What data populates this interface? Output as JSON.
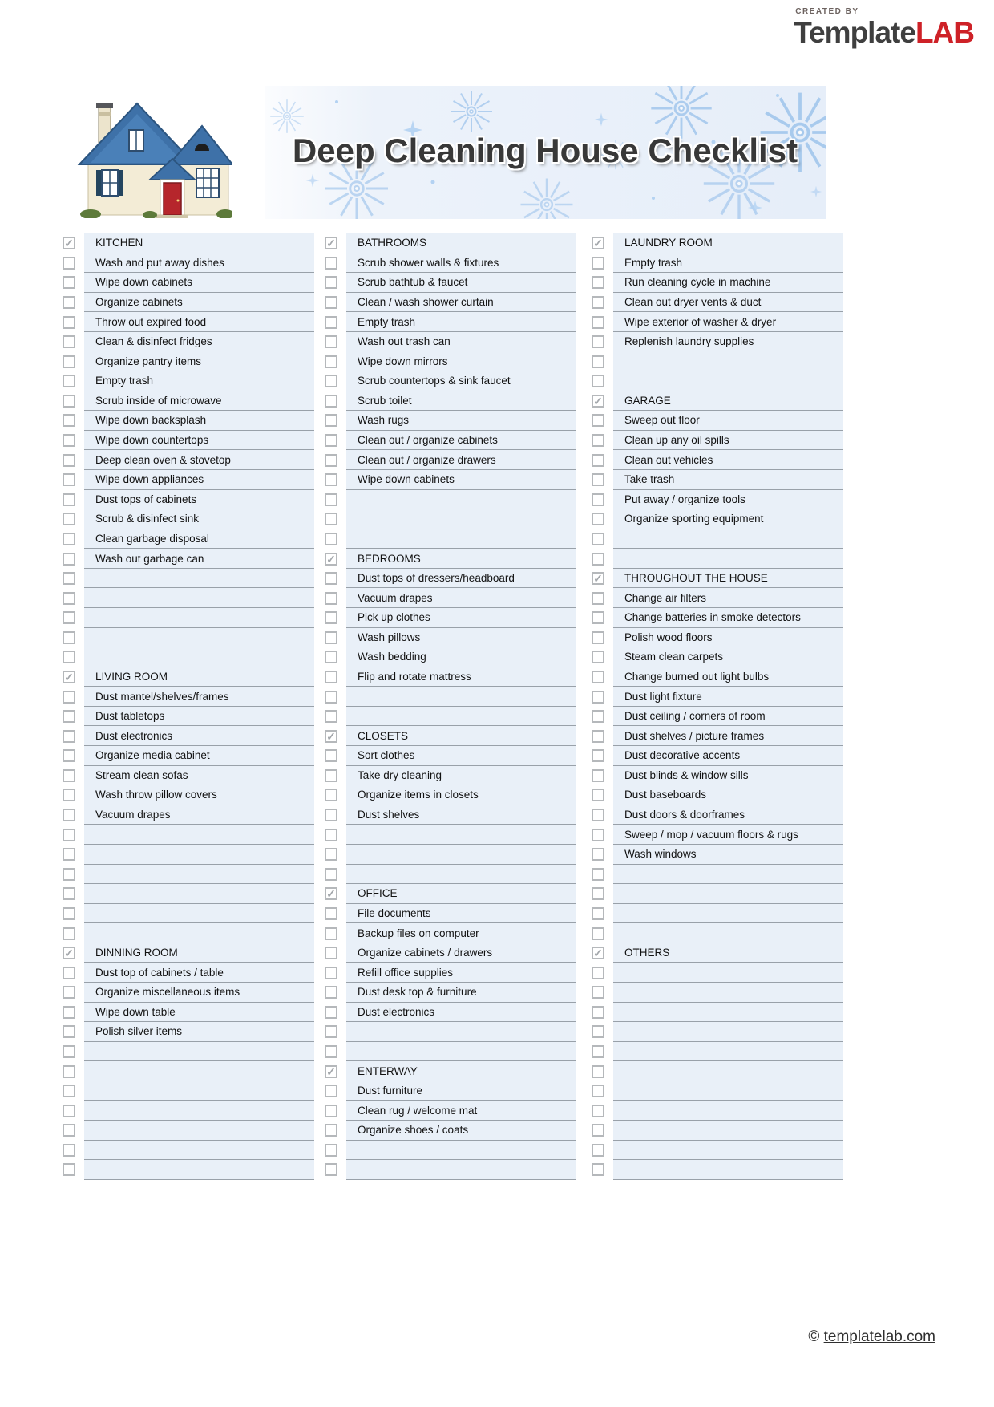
{
  "logo": {
    "created_by": "CREATED BY",
    "brand_template": "Template",
    "brand_lab": "LAB"
  },
  "header": {
    "title": "Deep Cleaning House Checklist"
  },
  "footer": {
    "symbol": "©",
    "site": "templatelab.com"
  },
  "colors": {
    "brand_red": "#ce2127",
    "brand_gray": "#3f3f3f",
    "row_background": "#e9f0f8",
    "row_line": "#99a1a9",
    "checkbox_border": "#b5b8bb",
    "check_mark": "#a3a7ab",
    "banner_blue": "#e6eef9",
    "firework_blue": "#9ec4ec",
    "title_color": "#383838",
    "house_roof_blue": "#3e71a8",
    "house_wall_cream": "#f3ecd6",
    "house_door_red": "#b6262c"
  },
  "checklist": {
    "columns": [
      {
        "rows": [
          {
            "type": "header",
            "label": "KITCHEN"
          },
          {
            "type": "item",
            "label": "Wash and put away dishes"
          },
          {
            "type": "item",
            "label": "Wipe down cabinets"
          },
          {
            "type": "item",
            "label": "Organize cabinets"
          },
          {
            "type": "item",
            "label": "Throw out expired food"
          },
          {
            "type": "item",
            "label": "Clean & disinfect fridges"
          },
          {
            "type": "item",
            "label": "Organize pantry items"
          },
          {
            "type": "item",
            "label": "Empty trash"
          },
          {
            "type": "item",
            "label": "Scrub inside of microwave"
          },
          {
            "type": "item",
            "label": "Wipe down backsplash"
          },
          {
            "type": "item",
            "label": "Wipe down countertops"
          },
          {
            "type": "item",
            "label": "Deep clean oven & stovetop"
          },
          {
            "type": "item",
            "label": "Wipe down appliances"
          },
          {
            "type": "item",
            "label": "Dust tops of cabinets"
          },
          {
            "type": "item",
            "label": "Scrub & disinfect sink"
          },
          {
            "type": "item",
            "label": "Clean garbage disposal"
          },
          {
            "type": "item",
            "label": "Wash out garbage can"
          },
          {
            "type": "empty"
          },
          {
            "type": "empty"
          },
          {
            "type": "empty"
          },
          {
            "type": "empty"
          },
          {
            "type": "empty"
          },
          {
            "type": "header",
            "label": "LIVING ROOM"
          },
          {
            "type": "item",
            "label": "Dust mantel/shelves/frames"
          },
          {
            "type": "item",
            "label": "Dust tabletops"
          },
          {
            "type": "item",
            "label": "Dust electronics"
          },
          {
            "type": "item",
            "label": "Organize media cabinet"
          },
          {
            "type": "item",
            "label": "Stream clean sofas"
          },
          {
            "type": "item",
            "label": "Wash throw pillow covers"
          },
          {
            "type": "item",
            "label": "Vacuum drapes"
          },
          {
            "type": "empty"
          },
          {
            "type": "empty"
          },
          {
            "type": "empty"
          },
          {
            "type": "empty"
          },
          {
            "type": "empty"
          },
          {
            "type": "empty"
          },
          {
            "type": "header",
            "label": "DINNING ROOM"
          },
          {
            "type": "item",
            "label": "Dust top of cabinets / table"
          },
          {
            "type": "item",
            "label": "Organize miscellaneous items"
          },
          {
            "type": "item",
            "label": "Wipe down table"
          },
          {
            "type": "item",
            "label": "Polish silver items"
          },
          {
            "type": "empty"
          },
          {
            "type": "empty"
          },
          {
            "type": "empty"
          },
          {
            "type": "empty"
          },
          {
            "type": "empty"
          },
          {
            "type": "empty"
          },
          {
            "type": "empty"
          }
        ]
      },
      {
        "rows": [
          {
            "type": "header",
            "label": "BATHROOMS"
          },
          {
            "type": "item",
            "label": "Scrub shower walls & fixtures"
          },
          {
            "type": "item",
            "label": "Scrub bathtub & faucet"
          },
          {
            "type": "item",
            "label": "Clean / wash shower curtain"
          },
          {
            "type": "item",
            "label": "Empty trash"
          },
          {
            "type": "item",
            "label": "Wash out trash can"
          },
          {
            "type": "item",
            "label": "Wipe down mirrors"
          },
          {
            "type": "item",
            "label": "Scrub countertops & sink faucet"
          },
          {
            "type": "item",
            "label": "Scrub toilet"
          },
          {
            "type": "item",
            "label": "Wash rugs"
          },
          {
            "type": "item",
            "label": "Clean out / organize cabinets"
          },
          {
            "type": "item",
            "label": "Clean out / organize drawers"
          },
          {
            "type": "item",
            "label": "Wipe down cabinets"
          },
          {
            "type": "empty"
          },
          {
            "type": "empty"
          },
          {
            "type": "empty"
          },
          {
            "type": "header",
            "label": "BEDROOMS"
          },
          {
            "type": "item",
            "label": "Dust tops of dressers/headboard"
          },
          {
            "type": "item",
            "label": "Vacuum drapes"
          },
          {
            "type": "item",
            "label": "Pick up clothes"
          },
          {
            "type": "item",
            "label": "Wash pillows"
          },
          {
            "type": "item",
            "label": "Wash bedding"
          },
          {
            "type": "item",
            "label": "Flip and rotate mattress"
          },
          {
            "type": "empty"
          },
          {
            "type": "empty"
          },
          {
            "type": "header",
            "label": "CLOSETS"
          },
          {
            "type": "item",
            "label": "Sort clothes"
          },
          {
            "type": "item",
            "label": "Take dry cleaning"
          },
          {
            "type": "item",
            "label": "Organize items in closets"
          },
          {
            "type": "item",
            "label": "Dust shelves"
          },
          {
            "type": "empty"
          },
          {
            "type": "empty"
          },
          {
            "type": "empty"
          },
          {
            "type": "header",
            "label": "OFFICE"
          },
          {
            "type": "item",
            "label": "File documents"
          },
          {
            "type": "item",
            "label": "Backup files on computer"
          },
          {
            "type": "item",
            "label": "Organize cabinets / drawers"
          },
          {
            "type": "item",
            "label": "Refill office supplies"
          },
          {
            "type": "item",
            "label": "Dust desk top & furniture"
          },
          {
            "type": "item",
            "label": "Dust electronics"
          },
          {
            "type": "empty"
          },
          {
            "type": "empty"
          },
          {
            "type": "header",
            "label": "ENTERWAY"
          },
          {
            "type": "item",
            "label": "Dust furniture"
          },
          {
            "type": "item",
            "label": "Clean rug / welcome mat"
          },
          {
            "type": "item",
            "label": "Organize shoes / coats"
          },
          {
            "type": "empty"
          },
          {
            "type": "empty"
          }
        ]
      },
      {
        "rows": [
          {
            "type": "header",
            "label": "LAUNDRY ROOM"
          },
          {
            "type": "item",
            "label": "Empty trash"
          },
          {
            "type": "item",
            "label": "Run cleaning cycle in machine"
          },
          {
            "type": "item",
            "label": "Clean out dryer vents & duct"
          },
          {
            "type": "item",
            "label": "Wipe exterior of washer & dryer"
          },
          {
            "type": "item",
            "label": "Replenish laundry supplies"
          },
          {
            "type": "empty"
          },
          {
            "type": "empty"
          },
          {
            "type": "header",
            "label": "GARAGE"
          },
          {
            "type": "item",
            "label": "Sweep out floor"
          },
          {
            "type": "item",
            "label": "Clean up any oil spills"
          },
          {
            "type": "item",
            "label": "Clean out vehicles"
          },
          {
            "type": "item",
            "label": "Take trash"
          },
          {
            "type": "item",
            "label": "Put away / organize tools"
          },
          {
            "type": "item",
            "label": "Organize sporting equipment"
          },
          {
            "type": "empty"
          },
          {
            "type": "empty"
          },
          {
            "type": "header",
            "label": "THROUGHOUT THE HOUSE"
          },
          {
            "type": "item",
            "label": "Change air filters"
          },
          {
            "type": "item",
            "label": "Change batteries in smoke detectors"
          },
          {
            "type": "item",
            "label": "Polish wood floors"
          },
          {
            "type": "item",
            "label": "Steam clean carpets"
          },
          {
            "type": "item",
            "label": "Change burned out light bulbs"
          },
          {
            "type": "item",
            "label": "Dust light fixture"
          },
          {
            "type": "item",
            "label": "Dust ceiling / corners of room"
          },
          {
            "type": "item",
            "label": "Dust shelves / picture frames"
          },
          {
            "type": "item",
            "label": "Dust decorative accents"
          },
          {
            "type": "item",
            "label": "Dust blinds & window sills"
          },
          {
            "type": "item",
            "label": "Dust baseboards"
          },
          {
            "type": "item",
            "label": "Dust doors & doorframes"
          },
          {
            "type": "item",
            "label": "Sweep / mop / vacuum floors & rugs"
          },
          {
            "type": "item",
            "label": "Wash windows"
          },
          {
            "type": "empty"
          },
          {
            "type": "empty"
          },
          {
            "type": "empty"
          },
          {
            "type": "empty"
          },
          {
            "type": "header",
            "label": "OTHERS"
          },
          {
            "type": "empty"
          },
          {
            "type": "empty"
          },
          {
            "type": "empty"
          },
          {
            "type": "empty"
          },
          {
            "type": "empty"
          },
          {
            "type": "empty"
          },
          {
            "type": "empty"
          },
          {
            "type": "empty"
          },
          {
            "type": "empty"
          },
          {
            "type": "empty"
          },
          {
            "type": "empty"
          }
        ]
      }
    ]
  }
}
